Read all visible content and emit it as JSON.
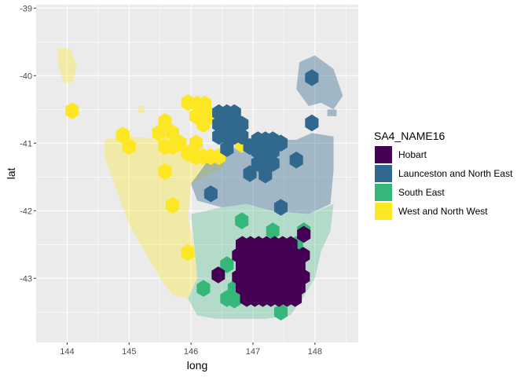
{
  "chart_data": {
    "type": "map",
    "xlabel": "long",
    "ylabel": "lat",
    "xlim": [
      143.5,
      148.7
    ],
    "ylim": [
      -43.95,
      -38.95
    ],
    "x_ticks": [
      144,
      145,
      146,
      147,
      148
    ],
    "x_tick_labels": [
      "144",
      "145",
      "146",
      "147",
      "148"
    ],
    "y_ticks": [
      -39,
      -40,
      -41,
      -42,
      -43
    ],
    "y_tick_labels": [
      "-39",
      "-40",
      "-41",
      "-42",
      "-43"
    ],
    "grid": true,
    "panel_background": "#ebebeb",
    "legend": {
      "title": "SA4_NAME16",
      "placement": "right",
      "entries": [
        {
          "label": "Hobart",
          "color": "#440154"
        },
        {
          "label": "Launceston and North East",
          "color": "#31688E"
        },
        {
          "label": "South East",
          "color": "#35B779"
        },
        {
          "label": "West and North West",
          "color": "#FDE725"
        }
      ]
    },
    "regions": [
      {
        "name": "West and North West",
        "color": "#FDE725",
        "opacity": 0.35,
        "outline": [
          [
            144.6,
            -40.95
          ],
          [
            144.9,
            -40.9
          ],
          [
            145.3,
            -40.92
          ],
          [
            145.7,
            -41.0
          ],
          [
            146.0,
            -41.05
          ],
          [
            146.2,
            -41.15
          ],
          [
            146.45,
            -41.2
          ],
          [
            146.55,
            -41.35
          ],
          [
            146.0,
            -41.6
          ],
          [
            145.95,
            -42.1
          ],
          [
            146.05,
            -42.5
          ],
          [
            146.1,
            -43.0
          ],
          [
            145.95,
            -43.3
          ],
          [
            145.7,
            -43.25
          ],
          [
            145.5,
            -43.0
          ],
          [
            145.25,
            -42.6
          ],
          [
            145.0,
            -42.2
          ],
          [
            144.8,
            -41.7
          ],
          [
            144.6,
            -41.2
          ]
        ],
        "islands": [
          [
            [
              143.85,
              -39.6
            ],
            [
              144.05,
              -39.6
            ],
            [
              144.15,
              -39.85
            ],
            [
              144.1,
              -40.1
            ],
            [
              143.95,
              -40.1
            ],
            [
              143.85,
              -39.85
            ]
          ],
          [
            [
              145.15,
              -40.45
            ],
            [
              145.25,
              -40.45
            ],
            [
              145.25,
              -40.55
            ],
            [
              145.15,
              -40.55
            ]
          ]
        ]
      },
      {
        "name": "Launceston and North East",
        "color": "#31688E",
        "opacity": 0.4,
        "outline": [
          [
            146.4,
            -41.1
          ],
          [
            146.9,
            -41.05
          ],
          [
            147.3,
            -40.95
          ],
          [
            147.7,
            -40.95
          ],
          [
            147.95,
            -40.85
          ],
          [
            148.3,
            -40.9
          ],
          [
            148.3,
            -41.4
          ],
          [
            148.25,
            -41.9
          ],
          [
            147.9,
            -42.05
          ],
          [
            147.3,
            -42.0
          ],
          [
            146.9,
            -41.9
          ],
          [
            146.5,
            -41.95
          ],
          [
            146.1,
            -41.85
          ],
          [
            146.0,
            -41.6
          ],
          [
            146.2,
            -41.35
          ]
        ],
        "islands": [
          [
            [
              147.75,
              -39.8
            ],
            [
              148.0,
              -39.7
            ],
            [
              148.3,
              -39.9
            ],
            [
              148.45,
              -40.3
            ],
            [
              148.3,
              -40.5
            ],
            [
              148.1,
              -40.4
            ],
            [
              147.9,
              -40.45
            ],
            [
              147.7,
              -40.2
            ]
          ],
          [
            [
              148.2,
              -40.5
            ],
            [
              148.35,
              -40.5
            ],
            [
              148.35,
              -40.6
            ],
            [
              148.2,
              -40.6
            ]
          ]
        ]
      },
      {
        "name": "South East",
        "color": "#35B779",
        "opacity": 0.3,
        "outline": [
          [
            146.0,
            -42.05
          ],
          [
            146.5,
            -41.95
          ],
          [
            146.9,
            -41.9
          ],
          [
            147.3,
            -42.0
          ],
          [
            147.9,
            -42.05
          ],
          [
            148.3,
            -41.9
          ],
          [
            148.25,
            -42.3
          ],
          [
            148.1,
            -42.6
          ],
          [
            148.0,
            -43.0
          ],
          [
            147.8,
            -43.3
          ],
          [
            147.6,
            -43.55
          ],
          [
            147.2,
            -43.6
          ],
          [
            146.8,
            -43.6
          ],
          [
            146.4,
            -43.6
          ],
          [
            146.1,
            -43.55
          ],
          [
            145.95,
            -43.3
          ],
          [
            146.1,
            -43.0
          ],
          [
            146.05,
            -42.5
          ]
        ],
        "islands": []
      }
    ],
    "hex_radius_deg": 0.125,
    "hexagons": [
      {
        "region": "West and North West",
        "centers": [
          [
            144.08,
            -40.52
          ],
          [
            144.9,
            -40.88
          ],
          [
            145.0,
            -41.05
          ],
          [
            145.48,
            -40.85
          ],
          [
            145.58,
            -40.68
          ],
          [
            145.7,
            -40.85
          ],
          [
            145.7,
            -41.05
          ],
          [
            145.58,
            -41.05
          ],
          [
            145.82,
            -41.0
          ],
          [
            145.95,
            -41.15
          ],
          [
            146.08,
            -41.2
          ],
          [
            146.2,
            -41.2
          ],
          [
            146.32,
            -41.2
          ],
          [
            146.45,
            -41.2
          ],
          [
            146.08,
            -41.0
          ],
          [
            145.95,
            -40.4
          ],
          [
            146.1,
            -40.42
          ],
          [
            146.22,
            -40.42
          ],
          [
            146.08,
            -40.6
          ],
          [
            146.2,
            -40.6
          ],
          [
            146.2,
            -40.72
          ],
          [
            146.32,
            -40.6
          ],
          [
            146.82,
            -41.02
          ],
          [
            145.58,
            -41.42
          ],
          [
            145.7,
            -41.92
          ],
          [
            145.95,
            -42.62
          ]
        ]
      },
      {
        "region": "Launceston and North East",
        "centers": [
          [
            146.45,
            -40.55
          ],
          [
            146.58,
            -40.55
          ],
          [
            146.7,
            -40.55
          ],
          [
            146.45,
            -40.72
          ],
          [
            146.58,
            -40.72
          ],
          [
            146.7,
            -40.72
          ],
          [
            146.82,
            -40.72
          ],
          [
            146.45,
            -40.9
          ],
          [
            146.58,
            -40.9
          ],
          [
            146.7,
            -40.9
          ],
          [
            146.82,
            -40.9
          ],
          [
            146.58,
            -41.08
          ],
          [
            146.95,
            -41.05
          ],
          [
            147.08,
            -40.95
          ],
          [
            147.2,
            -40.95
          ],
          [
            147.32,
            -40.95
          ],
          [
            147.45,
            -41.0
          ],
          [
            147.08,
            -41.12
          ],
          [
            147.2,
            -41.12
          ],
          [
            147.32,
            -41.12
          ],
          [
            147.08,
            -41.3
          ],
          [
            147.2,
            -41.3
          ],
          [
            147.32,
            -41.3
          ],
          [
            146.95,
            -41.45
          ],
          [
            147.2,
            -41.47
          ],
          [
            147.95,
            -40.03
          ],
          [
            147.95,
            -40.7
          ],
          [
            147.7,
            -41.25
          ],
          [
            146.32,
            -41.75
          ],
          [
            147.45,
            -41.95
          ]
        ]
      },
      {
        "region": "South East",
        "centers": [
          [
            146.82,
            -42.15
          ],
          [
            147.32,
            -42.3
          ],
          [
            147.82,
            -42.3
          ],
          [
            147.7,
            -42.5
          ],
          [
            146.58,
            -42.8
          ],
          [
            146.2,
            -43.15
          ],
          [
            146.7,
            -43.15
          ],
          [
            146.58,
            -43.3
          ],
          [
            146.7,
            -43.32
          ],
          [
            147.45,
            -43.5
          ]
        ]
      },
      {
        "region": "Hobart",
        "centers": [
          [
            146.83,
            -42.5
          ],
          [
            146.96,
            -42.5
          ],
          [
            147.09,
            -42.5
          ],
          [
            147.22,
            -42.5
          ],
          [
            147.35,
            -42.5
          ],
          [
            147.48,
            -42.5
          ],
          [
            147.61,
            -42.5
          ],
          [
            146.77,
            -42.66
          ],
          [
            146.9,
            -42.66
          ],
          [
            147.03,
            -42.66
          ],
          [
            147.16,
            -42.66
          ],
          [
            147.29,
            -42.66
          ],
          [
            147.42,
            -42.66
          ],
          [
            147.55,
            -42.66
          ],
          [
            147.68,
            -42.66
          ],
          [
            147.81,
            -42.66
          ],
          [
            146.83,
            -42.82
          ],
          [
            146.96,
            -42.82
          ],
          [
            147.09,
            -42.82
          ],
          [
            147.22,
            -42.82
          ],
          [
            147.35,
            -42.82
          ],
          [
            147.48,
            -42.82
          ],
          [
            147.61,
            -42.82
          ],
          [
            147.74,
            -42.82
          ],
          [
            146.77,
            -42.98
          ],
          [
            146.9,
            -42.98
          ],
          [
            147.03,
            -42.98
          ],
          [
            147.16,
            -42.98
          ],
          [
            147.29,
            -42.98
          ],
          [
            147.42,
            -42.98
          ],
          [
            147.55,
            -42.98
          ],
          [
            147.68,
            -42.98
          ],
          [
            147.81,
            -42.98
          ],
          [
            146.83,
            -43.14
          ],
          [
            146.96,
            -43.14
          ],
          [
            147.09,
            -43.14
          ],
          [
            147.22,
            -43.14
          ],
          [
            147.35,
            -43.14
          ],
          [
            147.48,
            -43.14
          ],
          [
            147.61,
            -43.14
          ],
          [
            147.74,
            -43.14
          ],
          [
            146.9,
            -43.3
          ],
          [
            147.03,
            -43.3
          ],
          [
            147.16,
            -43.3
          ],
          [
            147.29,
            -43.3
          ],
          [
            147.42,
            -43.3
          ],
          [
            147.55,
            -43.3
          ],
          [
            147.68,
            -43.3
          ],
          [
            146.44,
            -42.95
          ],
          [
            147.82,
            -42.35
          ]
        ]
      }
    ]
  }
}
